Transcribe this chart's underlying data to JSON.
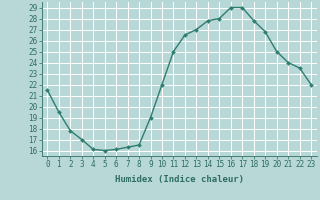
{
  "x": [
    0,
    1,
    2,
    3,
    4,
    5,
    6,
    7,
    8,
    9,
    10,
    11,
    12,
    13,
    14,
    15,
    16,
    17,
    18,
    19,
    20,
    21,
    22,
    23
  ],
  "y": [
    21.5,
    19.5,
    17.8,
    17.0,
    16.1,
    16.0,
    16.1,
    16.3,
    16.5,
    19.0,
    22.0,
    25.0,
    26.5,
    27.0,
    27.8,
    28.0,
    29.0,
    29.0,
    27.8,
    26.8,
    25.0,
    24.0,
    23.5,
    22.0
  ],
  "line_color": "#2e7d6e",
  "marker": "D",
  "marker_size": 2.0,
  "bg_color": "#b8d8d8",
  "grid_color": "#ffffff",
  "xlabel": "Humidex (Indice chaleur)",
  "xlim": [
    -0.5,
    23.5
  ],
  "ylim": [
    15.5,
    29.5
  ],
  "yticks": [
    16,
    17,
    18,
    19,
    20,
    21,
    22,
    23,
    24,
    25,
    26,
    27,
    28,
    29
  ],
  "xticks": [
    0,
    1,
    2,
    3,
    4,
    5,
    6,
    7,
    8,
    9,
    10,
    11,
    12,
    13,
    14,
    15,
    16,
    17,
    18,
    19,
    20,
    21,
    22,
    23
  ],
  "tick_color": "#2e6e60",
  "label_color": "#2e6e60",
  "xlabel_fontsize": 6.5,
  "tick_fontsize": 5.5,
  "linewidth": 1.0
}
